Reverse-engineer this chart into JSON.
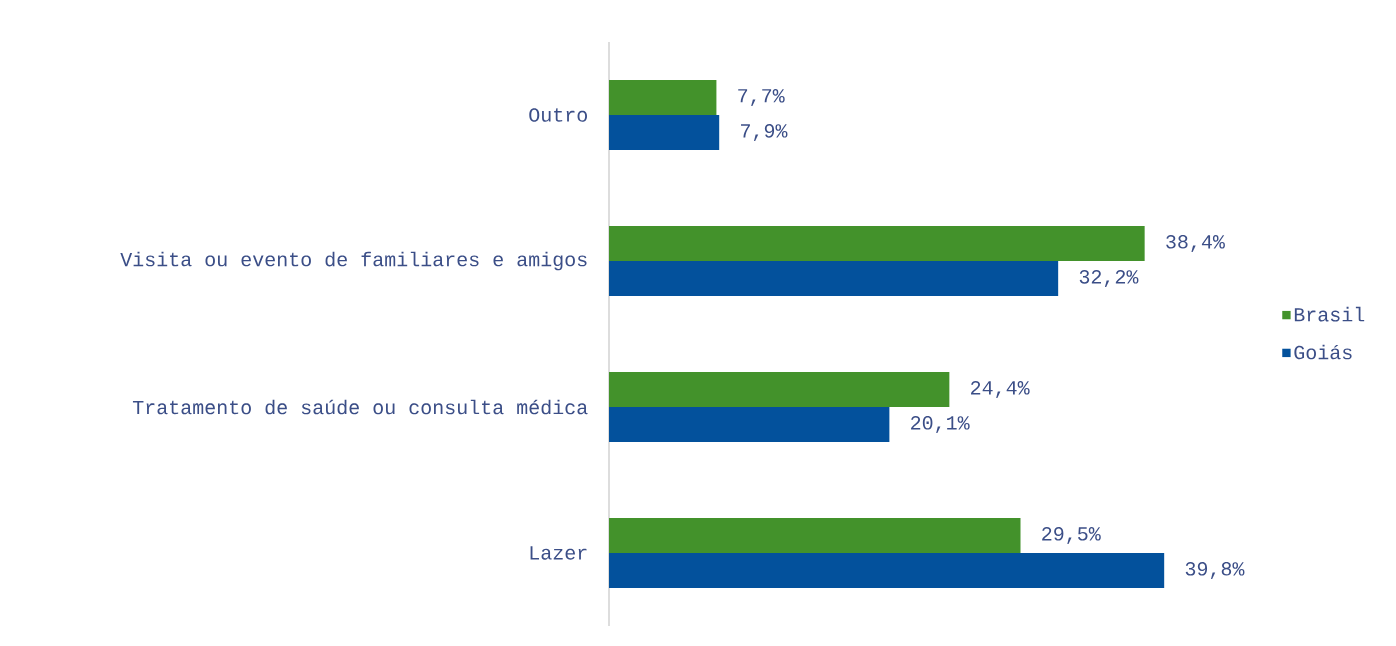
{
  "chart_data": {
    "type": "bar",
    "orientation": "horizontal",
    "categories": [
      "Outro",
      "Visita ou evento de familiares e amigos",
      "Tratamento de saúde ou consulta médica",
      "Lazer"
    ],
    "series": [
      {
        "name": "Brasil",
        "color": "#43922b",
        "values": [
          7.7,
          38.4,
          24.4,
          29.5
        ],
        "value_labels": [
          "7,7%",
          "38,4%",
          "24,4%",
          "29,5%"
        ]
      },
      {
        "name": "Goiás",
        "color": "#03519c",
        "values": [
          7.9,
          32.2,
          20.1,
          39.8
        ],
        "value_labels": [
          "7,9%",
          "32,2%",
          "20,1%",
          "39,8%"
        ]
      }
    ],
    "tick_labels": "y",
    "legend": "right"
  }
}
